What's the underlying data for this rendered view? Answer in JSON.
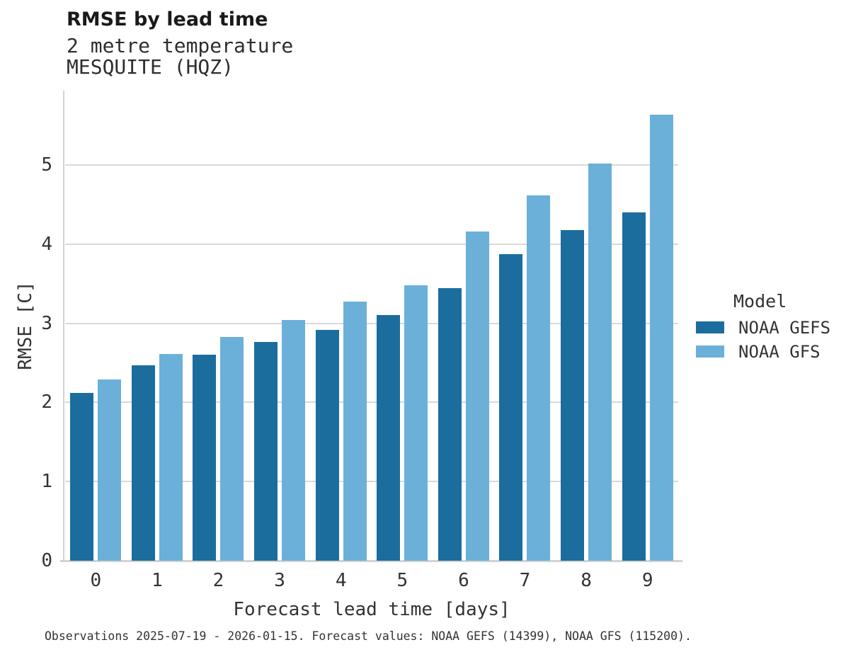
{
  "chart_data": {
    "type": "bar",
    "title": "RMSE by lead time",
    "subtitle_lines": [
      "2 metre temperature",
      "MESQUITE (HQZ)"
    ],
    "categories": [
      "0",
      "1",
      "2",
      "3",
      "4",
      "5",
      "6",
      "7",
      "8",
      "9"
    ],
    "series": [
      {
        "name": "NOAA GEFS",
        "color": "#1B6D9E",
        "values": [
          2.12,
          2.47,
          2.6,
          2.76,
          2.92,
          3.1,
          3.44,
          3.87,
          4.18,
          4.4
        ]
      },
      {
        "name": "NOAA GFS",
        "color": "#6BB0D9",
        "values": [
          2.29,
          2.61,
          2.83,
          3.04,
          3.27,
          3.48,
          4.16,
          4.62,
          5.02,
          5.64
        ]
      }
    ],
    "xlabel": "Forecast lead time [days]",
    "ylabel": "RMSE [C]",
    "ylim": [
      0,
      5.94
    ],
    "yticks": [
      0,
      1,
      2,
      3,
      4,
      5
    ],
    "grid": true,
    "legend": {
      "title": "Model",
      "position": "right"
    }
  },
  "footer": {
    "note": "Observations 2025-07-19 - 2026-01-15. Forecast values: NOAA GEFS (14399), NOAA GFS (115200)."
  },
  "colors": {
    "gridline": "#d9d9d9",
    "spine": "#d2d2d2"
  }
}
